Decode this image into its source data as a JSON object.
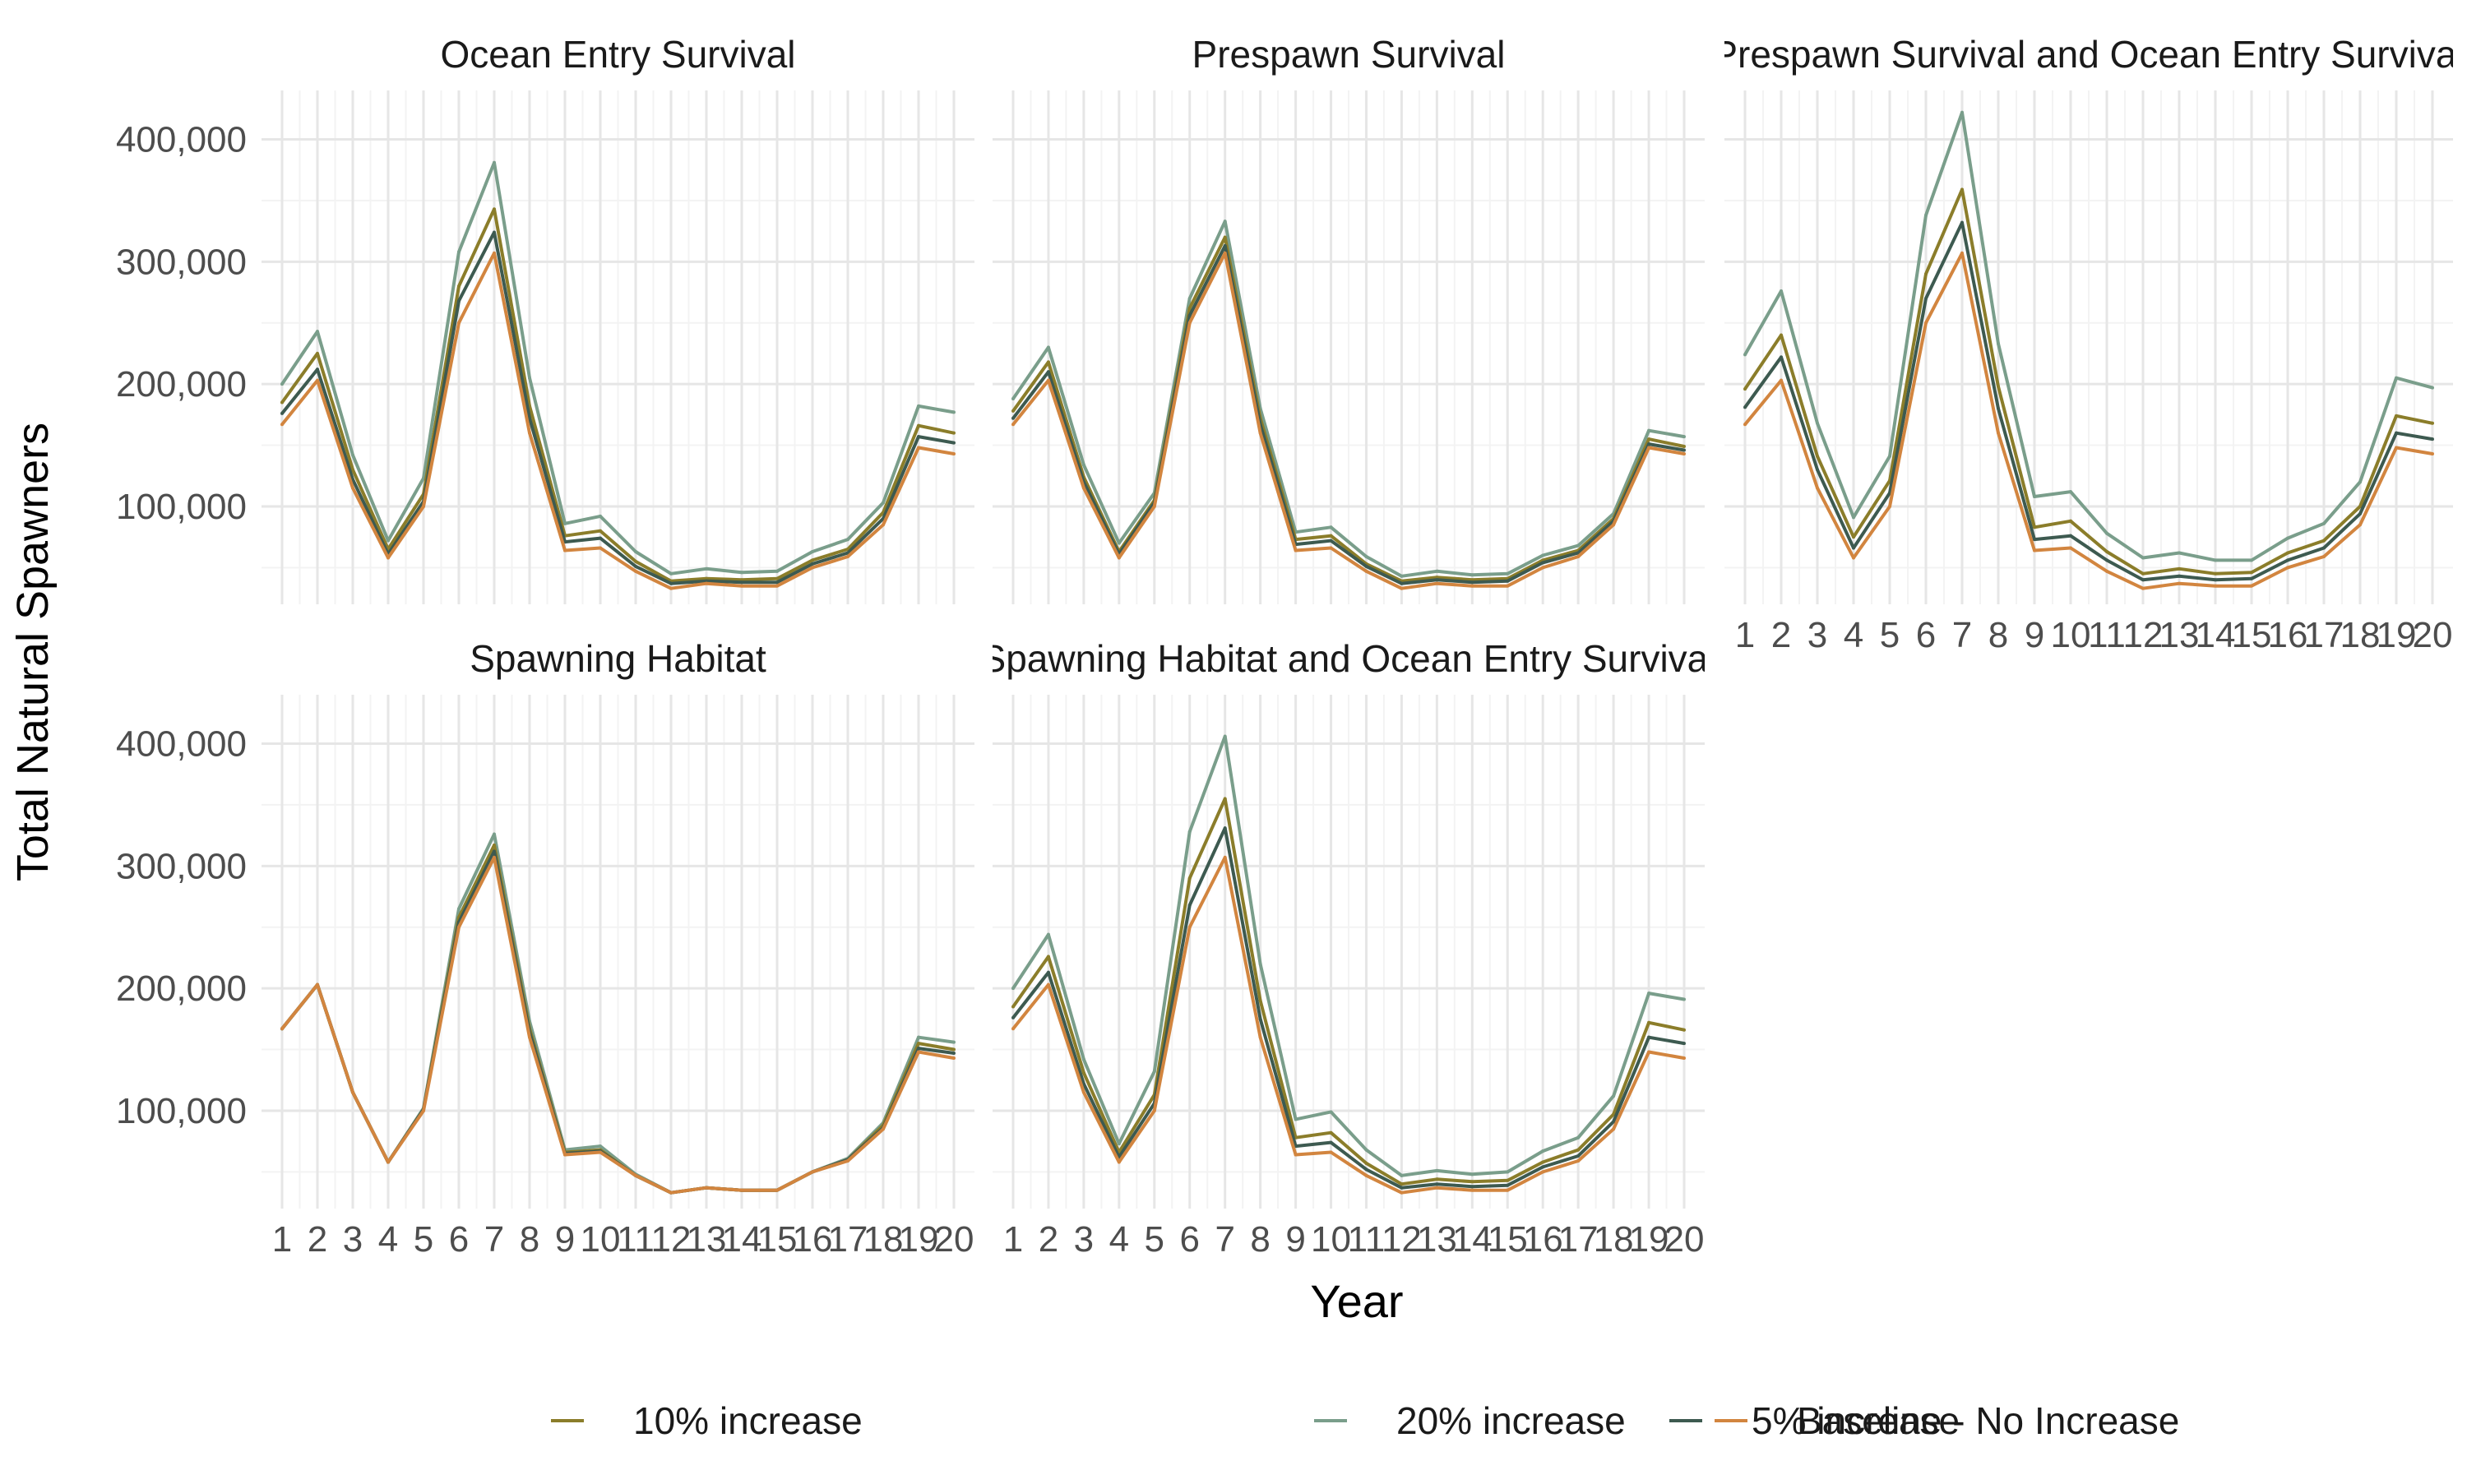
{
  "figure": {
    "y_axis_title": "Total Natural Spawners",
    "x_axis_title": "Year"
  },
  "legend": {
    "placement": "bottom",
    "items": [
      {
        "label": "10% increase",
        "color": "#8B7D2A"
      },
      {
        "label": "20% increase",
        "color": "#7A9E8B"
      },
      {
        "label": "5% increase",
        "color": "#3D5A50"
      },
      {
        "label": "Baseline - No Increase",
        "color": "#D2853F"
      }
    ]
  },
  "chart_data": [
    {
      "type": "line",
      "title": "Ocean Entry Survival",
      "xlabel": "Year",
      "ylabel": "Total Natural Spawners",
      "x": [
        1,
        2,
        3,
        4,
        5,
        6,
        7,
        8,
        9,
        10,
        11,
        12,
        13,
        14,
        15,
        16,
        17,
        18,
        19,
        20
      ],
      "ylim": [
        20000,
        440000
      ],
      "yticks": [
        "100,000",
        "200,000",
        "300,000",
        "400,000"
      ],
      "grid": true,
      "series": [
        {
          "name": "20% increase",
          "values": [
            200000,
            243000,
            142000,
            72000,
            123000,
            308000,
            381000,
            205000,
            86000,
            92000,
            63000,
            45000,
            49000,
            46000,
            47000,
            63000,
            73000,
            103000,
            182000,
            177000
          ]
        },
        {
          "name": "10% increase",
          "values": [
            185000,
            225000,
            130000,
            65000,
            110000,
            280000,
            343000,
            182000,
            76000,
            80000,
            55000,
            39000,
            41000,
            40000,
            41000,
            56000,
            65000,
            95000,
            166000,
            160000
          ]
        },
        {
          "name": "5% increase",
          "values": [
            176000,
            212000,
            122000,
            61000,
            104000,
            268000,
            324000,
            172000,
            71000,
            74000,
            51000,
            37000,
            39000,
            38000,
            38000,
            53000,
            62000,
            90000,
            157000,
            152000
          ]
        },
        {
          "name": "Baseline - No Increase",
          "values": [
            167000,
            203000,
            115000,
            58000,
            100000,
            250000,
            307000,
            160000,
            64000,
            66000,
            47000,
            33000,
            37000,
            35000,
            35000,
            50000,
            59000,
            85000,
            148000,
            143000
          ]
        }
      ]
    },
    {
      "type": "line",
      "title": "Prespawn Survival",
      "x": [
        1,
        2,
        3,
        4,
        5,
        6,
        7,
        8,
        9,
        10,
        11,
        12,
        13,
        14,
        15,
        16,
        17,
        18,
        19,
        20
      ],
      "ylim": [
        20000,
        440000
      ],
      "grid": true,
      "series": [
        {
          "name": "20% increase",
          "values": [
            188000,
            230000,
            134000,
            70000,
            111000,
            270000,
            333000,
            180000,
            79000,
            83000,
            59000,
            43000,
            47000,
            44000,
            45000,
            60000,
            68000,
            94000,
            162000,
            157000
          ]
        },
        {
          "name": "10% increase",
          "values": [
            178000,
            218000,
            124000,
            63000,
            105000,
            262000,
            320000,
            172000,
            73000,
            76000,
            53000,
            39000,
            42000,
            40000,
            41000,
            56000,
            64000,
            90000,
            155000,
            149000
          ]
        },
        {
          "name": "5% increase",
          "values": [
            172000,
            210000,
            120000,
            61000,
            103000,
            256000,
            313000,
            167000,
            69000,
            72000,
            51000,
            37000,
            40000,
            38000,
            39000,
            54000,
            62000,
            88000,
            151000,
            146000
          ]
        },
        {
          "name": "Baseline - No Increase",
          "values": [
            167000,
            203000,
            115000,
            58000,
            100000,
            250000,
            307000,
            160000,
            64000,
            66000,
            47000,
            33000,
            37000,
            35000,
            35000,
            50000,
            59000,
            85000,
            148000,
            143000
          ]
        }
      ]
    },
    {
      "type": "line",
      "title": "Prespawn Survival and Ocean Entry Survival",
      "x": [
        1,
        2,
        3,
        4,
        5,
        6,
        7,
        8,
        9,
        10,
        11,
        12,
        13,
        14,
        15,
        16,
        17,
        18,
        19,
        20
      ],
      "ylim": [
        20000,
        440000
      ],
      "grid": true,
      "series": [
        {
          "name": "20% increase",
          "values": [
            224000,
            276000,
            168000,
            91000,
            141000,
            338000,
            422000,
            233000,
            108000,
            112000,
            78000,
            58000,
            62000,
            56000,
            56000,
            74000,
            86000,
            120000,
            205000,
            197000
          ]
        },
        {
          "name": "10% increase",
          "values": [
            196000,
            240000,
            141000,
            75000,
            121000,
            290000,
            359000,
            198000,
            83000,
            88000,
            63000,
            45000,
            49000,
            45000,
            46000,
            62000,
            72000,
            100000,
            174000,
            168000
          ]
        },
        {
          "name": "5% increase",
          "values": [
            181000,
            222000,
            130000,
            66000,
            111000,
            270000,
            332000,
            180000,
            73000,
            76000,
            56000,
            40000,
            43000,
            40000,
            41000,
            56000,
            66000,
            94000,
            160000,
            155000
          ]
        },
        {
          "name": "Baseline - No Increase",
          "values": [
            167000,
            203000,
            115000,
            58000,
            100000,
            250000,
            307000,
            160000,
            64000,
            66000,
            47000,
            33000,
            37000,
            35000,
            35000,
            50000,
            59000,
            85000,
            148000,
            143000
          ]
        }
      ]
    },
    {
      "type": "line",
      "title": "Spawning Habitat",
      "x": [
        1,
        2,
        3,
        4,
        5,
        6,
        7,
        8,
        9,
        10,
        11,
        12,
        13,
        14,
        15,
        16,
        17,
        18,
        19,
        20
      ],
      "ylim": [
        20000,
        440000
      ],
      "grid": true,
      "series": [
        {
          "name": "20% increase",
          "values": [
            167000,
            203000,
            115000,
            58000,
            102000,
            265000,
            326000,
            173000,
            68000,
            71000,
            48000,
            33000,
            37000,
            35000,
            35000,
            50000,
            61000,
            90000,
            160000,
            156000
          ]
        },
        {
          "name": "10% increase",
          "values": [
            167000,
            203000,
            115000,
            58000,
            101000,
            258000,
            317000,
            167000,
            66000,
            68000,
            47000,
            33000,
            37000,
            35000,
            35000,
            50000,
            60000,
            88000,
            155000,
            150000
          ]
        },
        {
          "name": "5% increase",
          "values": [
            167000,
            203000,
            115000,
            58000,
            101000,
            254000,
            312000,
            164000,
            65000,
            67000,
            47000,
            33000,
            37000,
            35000,
            35000,
            50000,
            60000,
            86000,
            151000,
            147000
          ]
        },
        {
          "name": "Baseline - No Increase",
          "values": [
            167000,
            203000,
            115000,
            58000,
            100000,
            250000,
            307000,
            160000,
            64000,
            66000,
            47000,
            33000,
            37000,
            35000,
            35000,
            50000,
            59000,
            85000,
            148000,
            143000
          ]
        }
      ]
    },
    {
      "type": "line",
      "title": "Spawning Habitat and Ocean Entry Survival",
      "x": [
        1,
        2,
        3,
        4,
        5,
        6,
        7,
        8,
        9,
        10,
        11,
        12,
        13,
        14,
        15,
        16,
        17,
        18,
        19,
        20
      ],
      "ylim": [
        20000,
        440000
      ],
      "grid": true,
      "series": [
        {
          "name": "20% increase",
          "values": [
            200000,
            244000,
            142000,
            73000,
            132000,
            328000,
            406000,
            220000,
            93000,
            99000,
            68000,
            47000,
            51000,
            48000,
            50000,
            67000,
            78000,
            112000,
            196000,
            191000
          ]
        },
        {
          "name": "10% increase",
          "values": [
            185000,
            226000,
            131000,
            66000,
            113000,
            290000,
            355000,
            190000,
            78000,
            82000,
            57000,
            40000,
            44000,
            42000,
            43000,
            58000,
            68000,
            97000,
            172000,
            166000
          ]
        },
        {
          "name": "5% increase",
          "values": [
            176000,
            213000,
            122000,
            62000,
            106000,
            268000,
            331000,
            175000,
            71000,
            74000,
            52000,
            37000,
            40000,
            38000,
            39000,
            54000,
            63000,
            91000,
            160000,
            155000
          ]
        },
        {
          "name": "Baseline - No Increase",
          "values": [
            167000,
            203000,
            115000,
            58000,
            100000,
            250000,
            307000,
            160000,
            64000,
            66000,
            47000,
            33000,
            37000,
            35000,
            35000,
            50000,
            59000,
            85000,
            148000,
            143000
          ]
        }
      ]
    }
  ]
}
